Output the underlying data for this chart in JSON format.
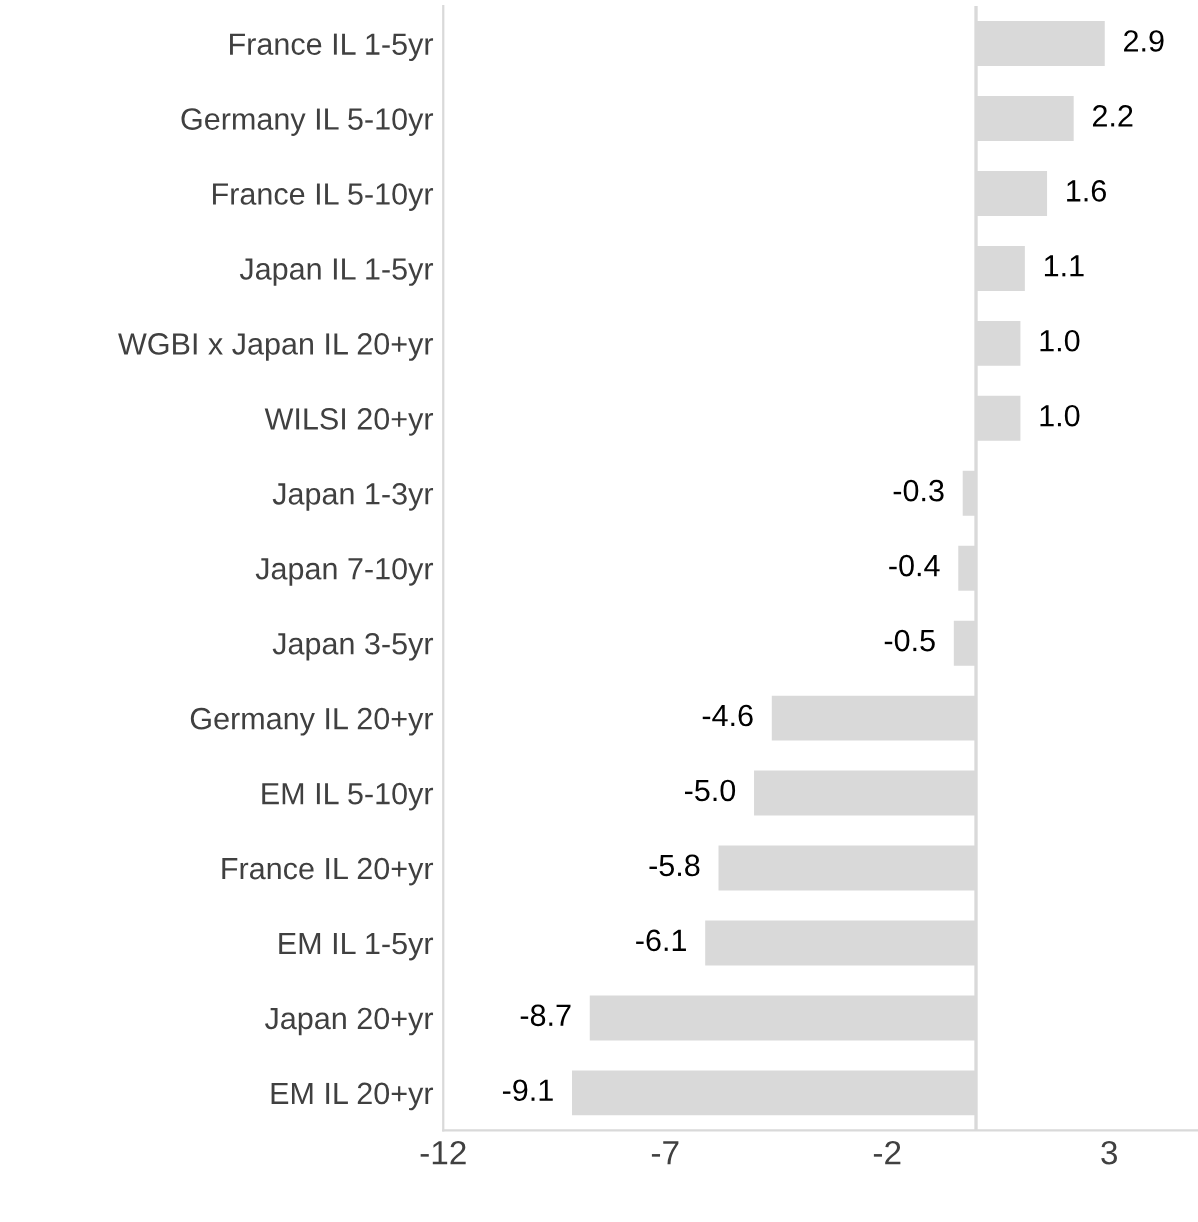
{
  "chart_data": {
    "type": "bar",
    "orientation": "horizontal",
    "categories": [
      "France IL 1-5yr",
      "Germany IL 5-10yr",
      "France IL 5-10yr",
      "Japan IL 1-5yr",
      "WGBI x Japan IL 20+yr",
      "WILSI 20+yr",
      "Japan 1-3yr",
      "Japan 7-10yr",
      "Japan 3-5yr",
      "Germany IL 20+yr",
      "EM IL 5-10yr",
      "France IL 20+yr",
      "EM IL 1-5yr",
      "Japan 20+yr",
      "EM IL 20+yr"
    ],
    "values": [
      2.9,
      2.2,
      1.6,
      1.1,
      1.0,
      1.0,
      -0.3,
      -0.4,
      -0.5,
      -4.6,
      -5.0,
      -5.8,
      -6.1,
      -8.7,
      -9.1
    ],
    "value_labels": [
      "2.9",
      "2.2",
      "1.6",
      "1.1",
      "1.0",
      "1.0",
      "-0.3",
      "-0.4",
      "-0.5",
      "-4.6",
      "-5.0",
      "-5.8",
      "-6.1",
      "-8.7",
      "-9.1"
    ],
    "color": "#d9d9d9",
    "xlim": [
      -12,
      5
    ],
    "xticks": [
      -12,
      -7,
      -2,
      3
    ],
    "grid": false
  }
}
